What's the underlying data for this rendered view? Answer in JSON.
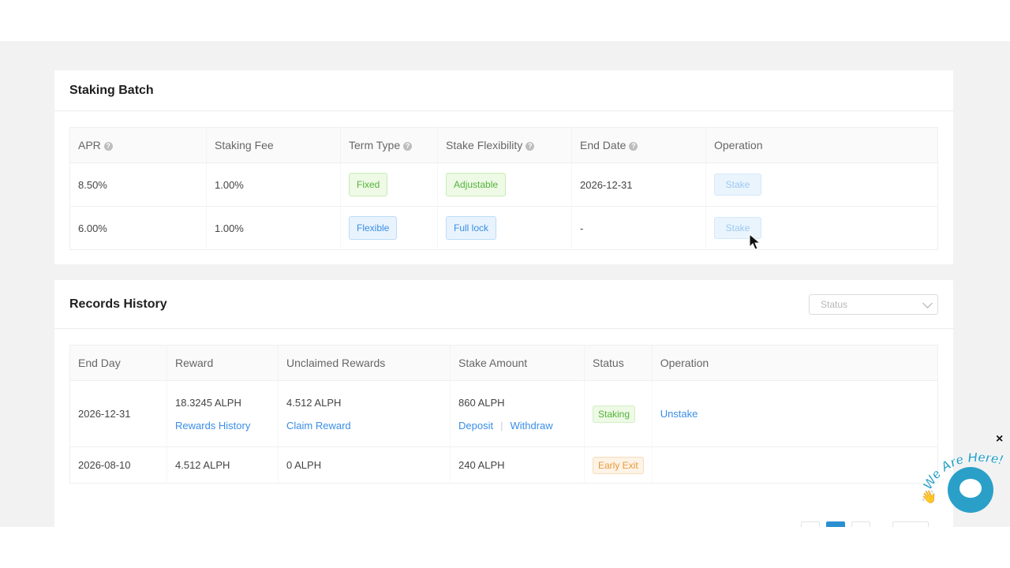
{
  "staking_batch": {
    "title": "Staking Batch",
    "columns": [
      "APR",
      "Staking Fee",
      "Term Type",
      "Stake Flexibility",
      "End Date",
      "Operation"
    ],
    "rows": [
      {
        "apr": "8.50%",
        "fee": "1.00%",
        "term": "Fixed",
        "flex": "Adjustable",
        "end_date": "2026-12-31",
        "op": "Stake"
      },
      {
        "apr": "6.00%",
        "fee": "1.00%",
        "term": "Flexible",
        "flex": "Full lock",
        "end_date": "-",
        "op": "Stake"
      }
    ]
  },
  "records_history": {
    "title": "Records History",
    "status_placeholder": "Status",
    "columns": [
      "End Day",
      "Reward",
      "Unclaimed Rewards",
      "Stake Amount",
      "Status",
      "Operation"
    ],
    "rows": [
      {
        "end_day": "2026-12-31",
        "reward": "18.3245 ALPH",
        "reward_link": "Rewards History",
        "unclaimed": "4.512 ALPH",
        "claim_link": "Claim Reward",
        "stake_amount": "860 ALPH",
        "deposit": "Deposit",
        "withdraw": "Withdraw",
        "status": "Staking",
        "operation": "Unstake"
      },
      {
        "end_day": "2026-08-10",
        "reward": "4.512 ALPH",
        "unclaimed": "0 ALPH",
        "stake_amount": "240 ALPH",
        "status": "Early Exit",
        "operation": ""
      }
    ],
    "separator": "|"
  },
  "chat_widget": {
    "text": "We Are Here!",
    "close": "×"
  },
  "icons": {
    "help": "question-circle-icon",
    "chevron": "chevron-down-icon",
    "chat": "chat-bubble-icon",
    "cursor": "mouse-cursor-icon"
  },
  "colors": {
    "accent": "#3a8ee6",
    "green": "#52b43a",
    "orange": "#e79a3a",
    "chat": "#2aa0c8"
  }
}
